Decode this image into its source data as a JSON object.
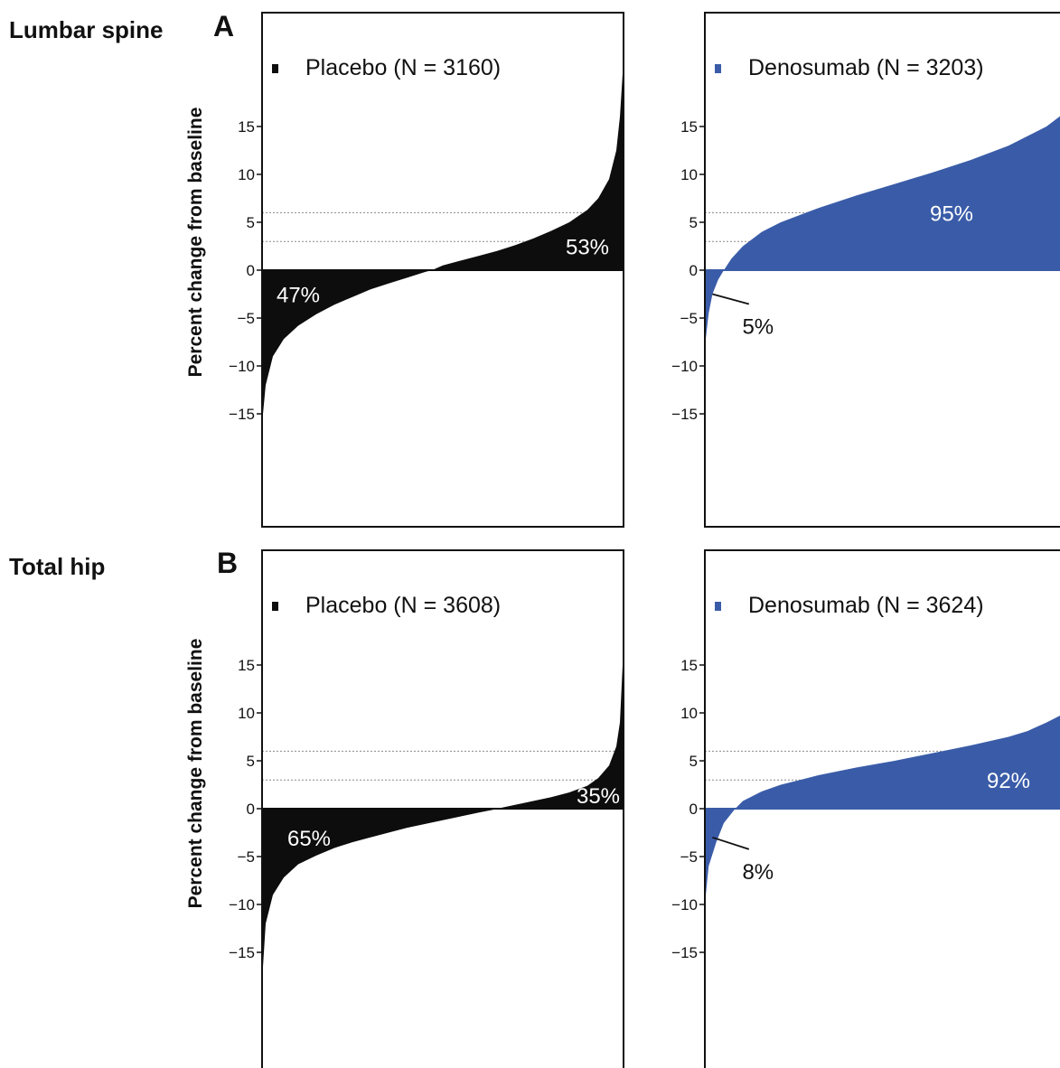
{
  "figure": {
    "ylabel": "Percent change from baseline",
    "ticks": [
      15,
      10,
      5,
      0,
      -5,
      -10,
      -15
    ],
    "tick_labels": [
      "15",
      "10",
      "5",
      "0",
      "−5",
      "−10",
      "−15"
    ],
    "reference_lines": [
      3,
      6
    ],
    "colors": {
      "placebo": "#0d0d0d",
      "denosumab": "#3a5ca8"
    }
  },
  "chart_data": [
    {
      "type": "area",
      "panel_letter": "A",
      "row_label": "Lumbar spine",
      "series": [
        {
          "name": "Placebo (N = 3160)",
          "color": "#0d0d0d"
        }
      ],
      "ylim": [
        -22,
        22
      ],
      "x": [
        0,
        0.01,
        0.03,
        0.06,
        0.1,
        0.15,
        0.2,
        0.25,
        0.3,
        0.35,
        0.4,
        0.45,
        0.47,
        0.5,
        0.55,
        0.6,
        0.65,
        0.7,
        0.75,
        0.8,
        0.85,
        0.9,
        0.93,
        0.96,
        0.98,
        0.99,
        1
      ],
      "y": [
        -16,
        -12,
        -9,
        -7.2,
        -5.8,
        -4.6,
        -3.6,
        -2.8,
        -2.0,
        -1.4,
        -0.8,
        -0.2,
        0,
        0.5,
        1.0,
        1.5,
        2.0,
        2.6,
        3.3,
        4.1,
        5.0,
        6.3,
        7.5,
        9.5,
        12.5,
        16,
        22
      ],
      "annotations": [
        {
          "text": "47%",
          "x": 0.1,
          "y": -2.5
        },
        {
          "text": "53%",
          "x": 0.9,
          "y": 2.5
        }
      ]
    },
    {
      "type": "area",
      "panel_letter": "",
      "row_label": "",
      "series": [
        {
          "name": "Denosumab (N = 3203)",
          "color": "#3a5ca8"
        }
      ],
      "ylim": [
        -22,
        22
      ],
      "x": [
        0,
        0.01,
        0.02,
        0.035,
        0.05,
        0.07,
        0.1,
        0.15,
        0.2,
        0.3,
        0.4,
        0.5,
        0.6,
        0.7,
        0.8,
        0.85,
        0.9,
        0.95,
        1
      ],
      "y": [
        -8,
        -4.5,
        -2.5,
        -1,
        0,
        1.2,
        2.5,
        4.0,
        5.0,
        6.5,
        7.8,
        9.0,
        10.2,
        11.5,
        13.0,
        14.0,
        15.0,
        16.5,
        18.5
      ],
      "annotations": [
        {
          "text": "95%",
          "x": 0.65,
          "y": 6
        },
        {
          "text": "5%",
          "x": 0.14,
          "y": -5.8,
          "pointer": [
            0.02,
            -2.5
          ]
        }
      ]
    },
    {
      "type": "area",
      "panel_letter": "B",
      "row_label": "Total hip",
      "series": [
        {
          "name": "Placebo (N = 3608)",
          "color": "#0d0d0d"
        }
      ],
      "ylim": [
        -22,
        22
      ],
      "x": [
        0,
        0.01,
        0.03,
        0.06,
        0.1,
        0.15,
        0.2,
        0.25,
        0.3,
        0.35,
        0.4,
        0.45,
        0.5,
        0.55,
        0.6,
        0.64,
        0.65,
        0.7,
        0.75,
        0.8,
        0.85,
        0.9,
        0.93,
        0.96,
        0.98,
        0.99,
        1
      ],
      "y": [
        -18,
        -12,
        -9,
        -7.2,
        -5.8,
        -4.9,
        -4.1,
        -3.5,
        -3.0,
        -2.5,
        -2.0,
        -1.6,
        -1.2,
        -0.8,
        -0.4,
        -0.1,
        0,
        0.4,
        0.8,
        1.2,
        1.7,
        2.4,
        3.2,
        4.5,
        6.5,
        9,
        17
      ],
      "annotations": [
        {
          "text": "65%",
          "x": 0.13,
          "y": -3
        },
        {
          "text": "35%",
          "x": 0.93,
          "y": 1.4
        }
      ]
    },
    {
      "type": "area",
      "panel_letter": "",
      "row_label": "",
      "series": [
        {
          "name": "Denosumab (N = 3624)",
          "color": "#3a5ca8"
        }
      ],
      "ylim": [
        -22,
        22
      ],
      "x": [
        0,
        0.01,
        0.03,
        0.05,
        0.08,
        0.1,
        0.15,
        0.2,
        0.3,
        0.4,
        0.5,
        0.6,
        0.7,
        0.8,
        0.85,
        0.9,
        0.95,
        1
      ],
      "y": [
        -10,
        -6,
        -3.5,
        -1.5,
        0,
        0.8,
        1.8,
        2.5,
        3.5,
        4.3,
        5.0,
        5.8,
        6.6,
        7.5,
        8.1,
        9.0,
        10.0,
        11.5
      ],
      "annotations": [
        {
          "text": "92%",
          "x": 0.8,
          "y": 3
        },
        {
          "text": "8%",
          "x": 0.14,
          "y": -6.5,
          "pointer": [
            0.02,
            -3
          ]
        }
      ]
    }
  ]
}
